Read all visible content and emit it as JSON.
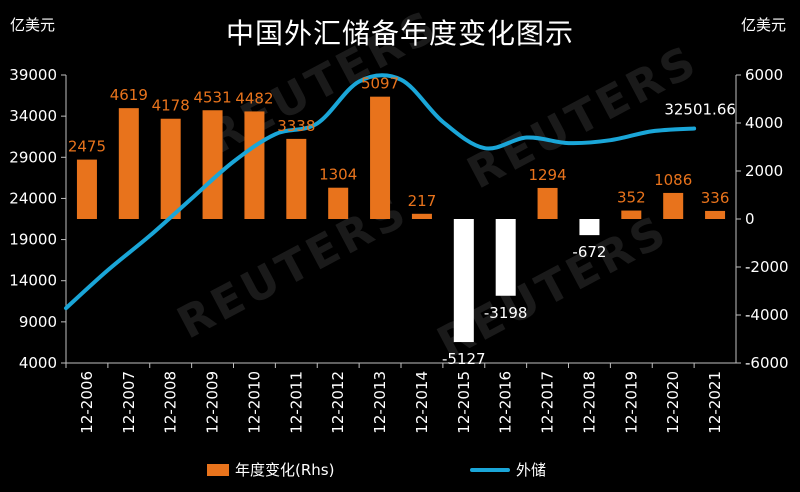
{
  "title": "中国外汇储备年度变化图示",
  "unit_left": "亿美元",
  "unit_right": "亿美元",
  "watermark": "REUTERS",
  "colors": {
    "bar_positive": "#e8731c",
    "bar_negative": "#ffffff",
    "line": "#1aa6d8",
    "label_positive": "#e8731c",
    "label_negative": "#ffffff",
    "background": "#000000",
    "axis": "#bfbfbf"
  },
  "chart_data": {
    "type": "bar",
    "categories": [
      "12-2006",
      "12-2007",
      "12-2008",
      "12-2009",
      "12-2010",
      "12-2011",
      "12-2012",
      "12-2013",
      "12-2014",
      "12-2015",
      "12-2016",
      "12-2017",
      "12-2018",
      "12-2019",
      "12-2020",
      "12-2021"
    ],
    "series": [
      {
        "name": "年度变化(Rhs)",
        "type": "bar",
        "axis": "right",
        "values": [
          2475,
          4619,
          4178,
          4531,
          4482,
          3338,
          1304,
          5097,
          217,
          -5127,
          -3198,
          1294,
          -672,
          352,
          1086,
          336
        ]
      },
      {
        "name": "外储",
        "type": "line",
        "axis": "left",
        "values": [
          10663,
          15282,
          19460,
          23992,
          28473,
          31812,
          33116,
          38213,
          38430,
          33304,
          30105,
          31399,
          30727,
          31079,
          32165,
          32501.66
        ]
      }
    ],
    "line_end_label": "32501.66",
    "y_left": {
      "min": 4000,
      "max": 39000,
      "ticks": [
        4000,
        9000,
        14000,
        19000,
        24000,
        29000,
        34000,
        39000
      ]
    },
    "y_right": {
      "min": -6000,
      "max": 6000,
      "ticks": [
        -6000,
        -4000,
        -2000,
        0,
        2000,
        4000,
        6000
      ]
    },
    "legend": {
      "position": "bottom",
      "items": [
        "年度变化(Rhs)",
        "外储"
      ]
    },
    "grid": false
  }
}
